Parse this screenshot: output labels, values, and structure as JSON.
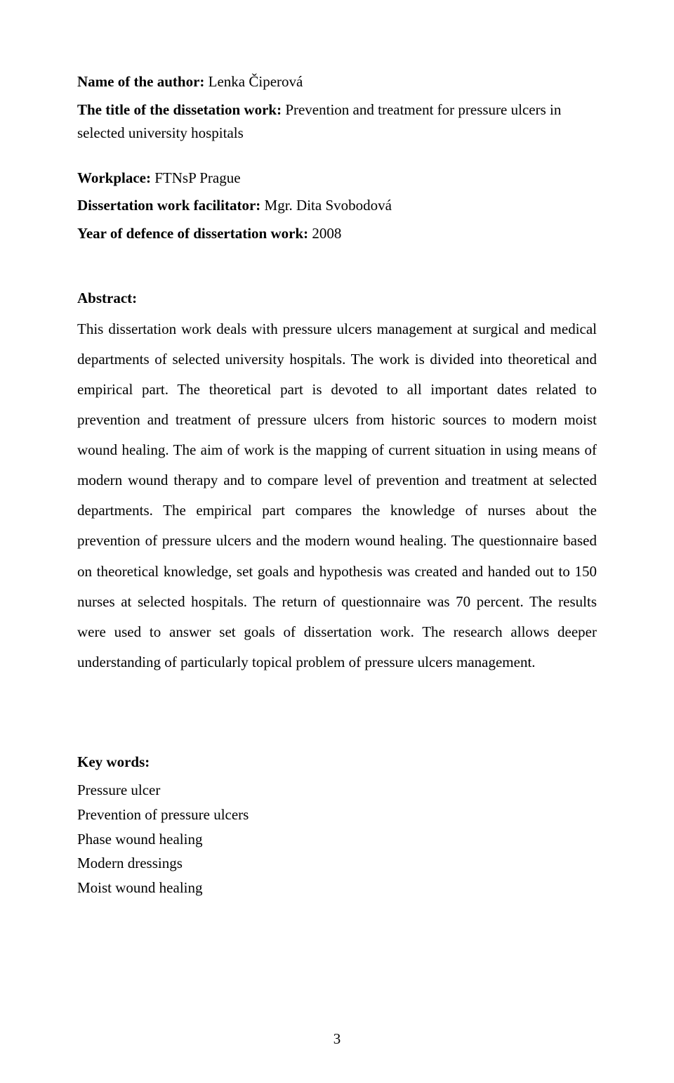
{
  "meta": {
    "author_label": "Name of the author: ",
    "author_value": "Lenka Čiperová",
    "title_label": "The title of the dissetation work: ",
    "title_value": "Prevention and treatment for pressure ulcers in selected university hospitals",
    "workplace_label": "Workplace: ",
    "workplace_value": "FTNsP Prague",
    "facilitator_label": "Dissertation work facilitator: ",
    "facilitator_value": "Mgr. Dita Svobodová",
    "year_label": "Year of defence of dissertation work: ",
    "year_value": "2008"
  },
  "abstract": {
    "heading": "Abstract:",
    "body": "This dissertation work deals with pressure ulcers management at surgical and medical departments of selected university hospitals. The work is divided into theoretical and empirical part. The theoretical part is devoted to all important dates related to prevention and treatment of pressure ulcers from historic sources to modern moist wound healing. The aim of work is the mapping of current situation in using means of modern wound therapy and to compare level of prevention and treatment at selected departments. The empirical part compares the knowledge of nurses about the prevention of pressure ulcers and the modern wound healing. The questionnaire based on theoretical knowledge, set goals and hypothesis was created and handed out to 150 nurses at selected hospitals. The return of questionnaire was 70 percent. The results were used to answer set goals of dissertation work. The research allows deeper understanding of particularly topical problem of pressure ulcers management."
  },
  "keywords": {
    "heading": "Key words:",
    "items": [
      "Pressure ulcer",
      "Prevention of pressure ulcers",
      "Phase wound healing",
      "Modern dressings",
      "Moist wound healing"
    ]
  },
  "page_number": "3"
}
